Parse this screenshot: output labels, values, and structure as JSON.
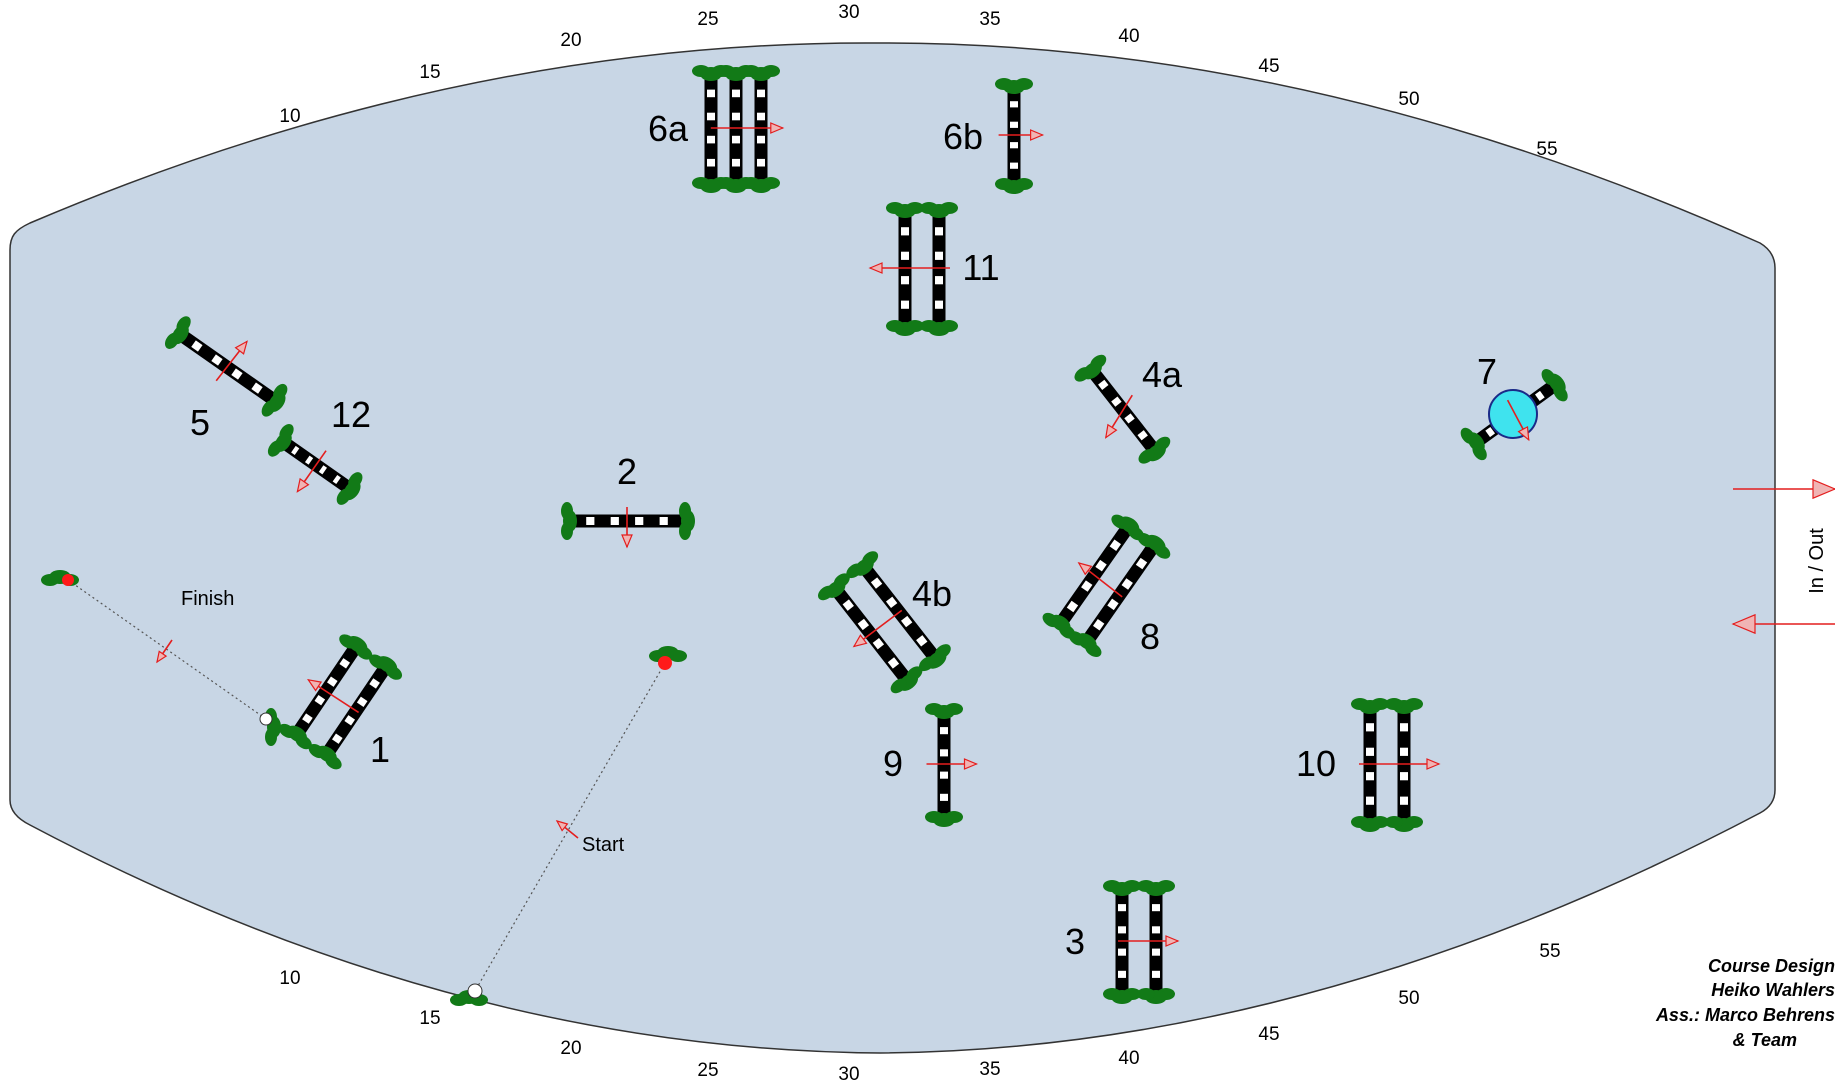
{
  "arena": {
    "fill": "#c8d6e5",
    "stroke": "#333333"
  },
  "colors": {
    "direction": "#e41e1e",
    "bush": "#127a17",
    "water": "#3fe3ee",
    "finish_dot": "#ff1a1a",
    "start_dot": "#ffffff"
  },
  "scale_top": [
    "10",
    "15",
    "20",
    "25",
    "30",
    "35",
    "40",
    "45",
    "50",
    "55"
  ],
  "scale_bottom": [
    "10",
    "15",
    "20",
    "25",
    "30",
    "35",
    "40",
    "45",
    "50",
    "55"
  ],
  "jumps": [
    {
      "id": "1",
      "label": "1",
      "type": "oxer"
    },
    {
      "id": "2",
      "label": "2",
      "type": "vertical"
    },
    {
      "id": "3",
      "label": "3",
      "type": "oxer"
    },
    {
      "id": "4a",
      "label": "4a",
      "type": "vertical"
    },
    {
      "id": "4b",
      "label": "4b",
      "type": "oxer"
    },
    {
      "id": "5",
      "label": "5",
      "type": "vertical"
    },
    {
      "id": "6a",
      "label": "6a",
      "type": "triple-bar"
    },
    {
      "id": "6b",
      "label": "6b",
      "type": "vertical"
    },
    {
      "id": "7",
      "label": "7",
      "type": "water-vertical"
    },
    {
      "id": "8",
      "label": "8",
      "type": "oxer"
    },
    {
      "id": "9",
      "label": "9",
      "type": "vertical"
    },
    {
      "id": "10",
      "label": "10",
      "type": "oxer"
    },
    {
      "id": "11",
      "label": "11",
      "type": "oxer"
    },
    {
      "id": "12",
      "label": "12",
      "type": "vertical"
    }
  ],
  "markers": {
    "start": "Start",
    "finish": "Finish"
  },
  "gate": {
    "label": "In / Out"
  },
  "credits": [
    "Course Design",
    "Heiko Wahlers",
    "Ass.: Marco Behrens",
    "& Team"
  ]
}
